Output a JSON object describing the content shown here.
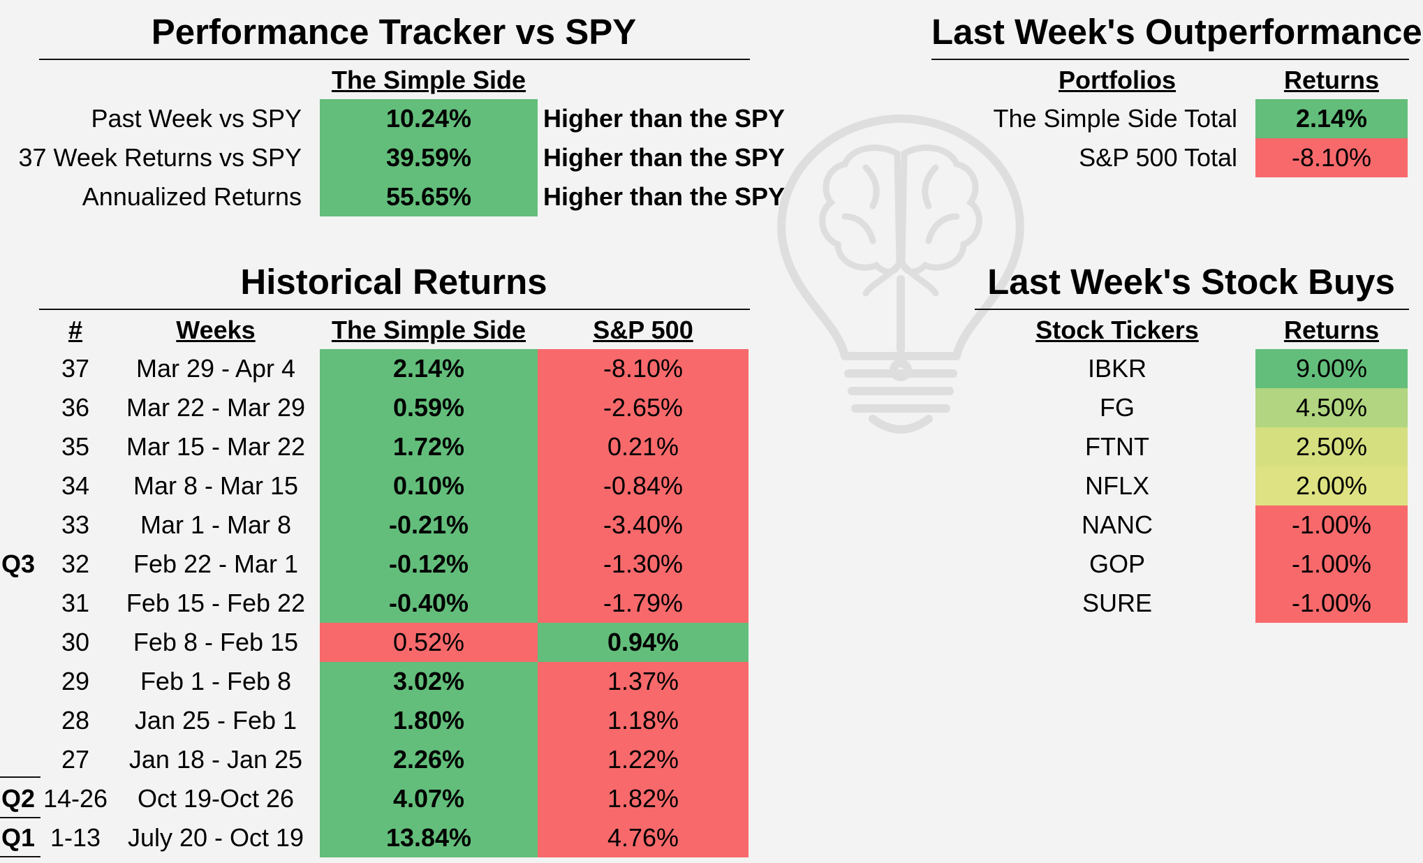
{
  "tracker": {
    "title": "Performance Tracker vs SPY",
    "column_header": "The Simple Side",
    "rows": [
      {
        "label": "Past Week vs SPY",
        "value": "10.24%",
        "note": "Higher than the SPY"
      },
      {
        "label": "37 Week Returns vs SPY",
        "value": "39.59%",
        "note": "Higher than the SPY"
      },
      {
        "label": "Annualized Returns",
        "value": "55.65%",
        "note": "Higher than the SPY"
      }
    ]
  },
  "outperformance": {
    "title": "Last Week's Outperformance",
    "headers": {
      "portfolios": "Portfolios",
      "returns": "Returns"
    },
    "rows": [
      {
        "portfolio": "The Simple Side Total",
        "return": "2.14%",
        "color": "green"
      },
      {
        "portfolio": "S&P 500 Total",
        "return": "-8.10%",
        "color": "red"
      }
    ]
  },
  "historical": {
    "title": "Historical Returns",
    "headers": {
      "num": "#",
      "weeks": "Weeks",
      "simple": "The Simple Side",
      "sp": "S&P 500"
    },
    "quarters": [
      "Q3",
      "Q2",
      "Q1"
    ],
    "rows": [
      {
        "num": "37",
        "weeks": "Mar 29 - Apr 4",
        "simple": "2.14%",
        "sp": "-8.10%",
        "winner": "simple"
      },
      {
        "num": "36",
        "weeks": "Mar 22 - Mar 29",
        "simple": "0.59%",
        "sp": "-2.65%",
        "winner": "simple"
      },
      {
        "num": "35",
        "weeks": "Mar 15 - Mar 22",
        "simple": "1.72%",
        "sp": "0.21%",
        "winner": "simple"
      },
      {
        "num": "34",
        "weeks": "Mar 8 - Mar 15",
        "simple": "0.10%",
        "sp": "-0.84%",
        "winner": "simple"
      },
      {
        "num": "33",
        "weeks": "Mar 1 - Mar 8",
        "simple": "-0.21%",
        "sp": "-3.40%",
        "winner": "simple"
      },
      {
        "num": "32",
        "weeks": "Feb 22 - Mar 1",
        "simple": "-0.12%",
        "sp": "-1.30%",
        "winner": "simple"
      },
      {
        "num": "31",
        "weeks": "Feb 15 - Feb 22",
        "simple": "-0.40%",
        "sp": "-1.79%",
        "winner": "simple"
      },
      {
        "num": "30",
        "weeks": "Feb 8 - Feb 15",
        "simple": "0.52%",
        "sp": "0.94%",
        "winner": "sp"
      },
      {
        "num": "29",
        "weeks": "Feb 1 - Feb 8",
        "simple": "3.02%",
        "sp": "1.37%",
        "winner": "simple"
      },
      {
        "num": "28",
        "weeks": "Jan 25 - Feb 1",
        "simple": "1.80%",
        "sp": "1.18%",
        "winner": "simple"
      },
      {
        "num": "27",
        "weeks": "Jan 18 - Jan 25",
        "simple": "2.26%",
        "sp": "1.22%",
        "winner": "simple"
      },
      {
        "num": "14-26",
        "weeks": "Oct 19-Oct 26",
        "simple": "4.07%",
        "sp": "1.82%",
        "winner": "simple"
      },
      {
        "num": "1-13",
        "weeks": "July 20 - Oct 19",
        "simple": "13.84%",
        "sp": "4.76%",
        "winner": "simple"
      }
    ]
  },
  "stock_buys": {
    "title": "Last Week's Stock Buys",
    "headers": {
      "tickers": "Stock Tickers",
      "returns": "Returns"
    },
    "rows": [
      {
        "ticker": "IBKR",
        "return": "9.00%",
        "color": "green"
      },
      {
        "ticker": "FG",
        "return": "4.50%",
        "color": "lime1"
      },
      {
        "ticker": "FTNT",
        "return": "2.50%",
        "color": "lime2"
      },
      {
        "ticker": "NFLX",
        "return": "2.00%",
        "color": "lime3"
      },
      {
        "ticker": "NANC",
        "return": "-1.00%",
        "color": "red"
      },
      {
        "ticker": "GOP",
        "return": "-1.00%",
        "color": "red"
      },
      {
        "ticker": "SURE",
        "return": "-1.00%",
        "color": "red"
      }
    ]
  },
  "watermark_icon": "lightbulb-brain-icon"
}
